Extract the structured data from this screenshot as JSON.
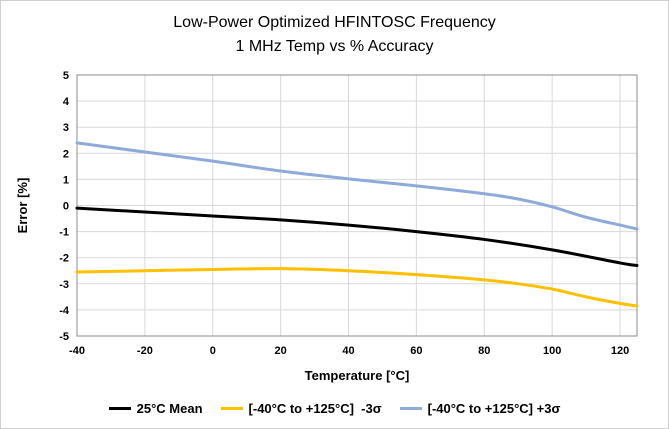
{
  "chart_data": {
    "type": "line",
    "title": "Low-Power Optimized HFINTOSC Frequency",
    "subtitle": "1 MHz Temp vs % Accuracy",
    "xlabel": "Temperature [°C]",
    "ylabel": "Error [%]",
    "xlim": [
      -40,
      125
    ],
    "ylim": [
      -5,
      5
    ],
    "xticks": [
      -40,
      -20,
      0,
      20,
      40,
      60,
      80,
      100,
      120
    ],
    "yticks": [
      5,
      4,
      3,
      2,
      1,
      0,
      -1,
      -2,
      -3,
      -4,
      -5
    ],
    "grid": true,
    "legend_position": "bottom",
    "series": [
      {
        "name": "25°C Mean",
        "color": "#000000",
        "x": [
          -40,
          -20,
          0,
          20,
          40,
          60,
          80,
          100,
          120,
          125
        ],
        "y": [
          -0.1,
          -0.25,
          -0.4,
          -0.55,
          -0.75,
          -1.0,
          -1.3,
          -1.7,
          -2.2,
          -2.3
        ]
      },
      {
        "name": "[-40°C to +125°C]  -3σ",
        "color": "#FFC000",
        "x": [
          -40,
          -20,
          0,
          20,
          40,
          60,
          80,
          90,
          100,
          110,
          120,
          125
        ],
        "y": [
          -2.55,
          -2.5,
          -2.45,
          -2.42,
          -2.5,
          -2.65,
          -2.85,
          -3.0,
          -3.2,
          -3.5,
          -3.75,
          -3.85
        ]
      },
      {
        "name": "[-40°C to +125°C] +3σ",
        "color": "#8EA9DB",
        "x": [
          -40,
          -20,
          0,
          20,
          40,
          60,
          80,
          90,
          100,
          110,
          120,
          125
        ],
        "y": [
          2.4,
          2.05,
          1.7,
          1.32,
          1.02,
          0.75,
          0.45,
          0.25,
          -0.05,
          -0.45,
          -0.75,
          -0.9
        ]
      }
    ]
  }
}
